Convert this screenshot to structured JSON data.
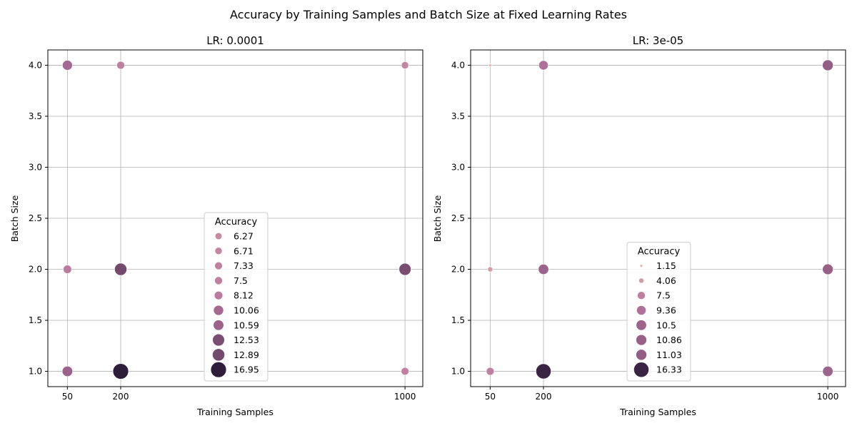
{
  "chart_data": {
    "suptitle": "Accuracy by Training Samples and Batch Size at Fixed Learning Rates",
    "colors": {
      "light": "#e8b3a8",
      "mid": "#b5739e",
      "dark": "#2e1e3b",
      "grid": "#b0b0b0",
      "axis": "#000000"
    },
    "panels": [
      {
        "type": "scatter",
        "title": "LR: 0.0001",
        "xlabel": "Training Samples",
        "ylabel": "Batch Size",
        "xticks": [
          50,
          200,
          1000
        ],
        "yticks": [
          1.0,
          1.5,
          2.0,
          2.5,
          3.0,
          3.5,
          4.0
        ],
        "xlim": [
          -5,
          1050
        ],
        "ylim": [
          0.85,
          4.15
        ],
        "grid": true,
        "legend": {
          "title": "Accuracy",
          "placement": "lower center",
          "entries": [
            "6.27",
            "6.71",
            "7.33",
            "7.5",
            "8.12",
            "10.06",
            "10.59",
            "12.53",
            "12.89",
            "16.95"
          ]
        },
        "points": [
          {
            "x": 50,
            "y": 4,
            "accuracy": 10.06
          },
          {
            "x": 200,
            "y": 4,
            "accuracy": 7.5
          },
          {
            "x": 1000,
            "y": 4,
            "accuracy": 6.71
          },
          {
            "x": 50,
            "y": 2,
            "accuracy": 8.12
          },
          {
            "x": 200,
            "y": 2,
            "accuracy": 12.89
          },
          {
            "x": 1000,
            "y": 2,
            "accuracy": 12.53
          },
          {
            "x": 50,
            "y": 1,
            "accuracy": 10.59
          },
          {
            "x": 200,
            "y": 1,
            "accuracy": 16.95
          },
          {
            "x": 1000,
            "y": 1,
            "accuracy": 6.27
          },
          {
            "x": 1000,
            "y": 1,
            "accuracy": 7.33
          }
        ]
      },
      {
        "type": "scatter",
        "title": "LR: 3e-05",
        "xlabel": "Training Samples",
        "ylabel": "Batch Size",
        "xticks": [
          50,
          200,
          1000
        ],
        "yticks": [
          1.0,
          1.5,
          2.0,
          2.5,
          3.0,
          3.5,
          4.0
        ],
        "xlim": [
          -5,
          1050
        ],
        "ylim": [
          0.85,
          4.15
        ],
        "grid": true,
        "legend": {
          "title": "Accuracy",
          "placement": "lower center",
          "entries": [
            "1.15",
            "4.06",
            "7.5",
            "9.36",
            "10.5",
            "10.86",
            "11.03",
            "16.33"
          ]
        },
        "points": [
          {
            "x": 50,
            "y": 4,
            "accuracy": 1.15
          },
          {
            "x": 200,
            "y": 4,
            "accuracy": 9.36
          },
          {
            "x": 1000,
            "y": 4,
            "accuracy": 11.03
          },
          {
            "x": 50,
            "y": 2,
            "accuracy": 4.06
          },
          {
            "x": 200,
            "y": 2,
            "accuracy": 10.5
          },
          {
            "x": 1000,
            "y": 2,
            "accuracy": 10.86
          },
          {
            "x": 50,
            "y": 1,
            "accuracy": 7.5
          },
          {
            "x": 200,
            "y": 1,
            "accuracy": 16.33
          },
          {
            "x": 1000,
            "y": 1,
            "accuracy": 10.5
          }
        ]
      }
    ]
  }
}
